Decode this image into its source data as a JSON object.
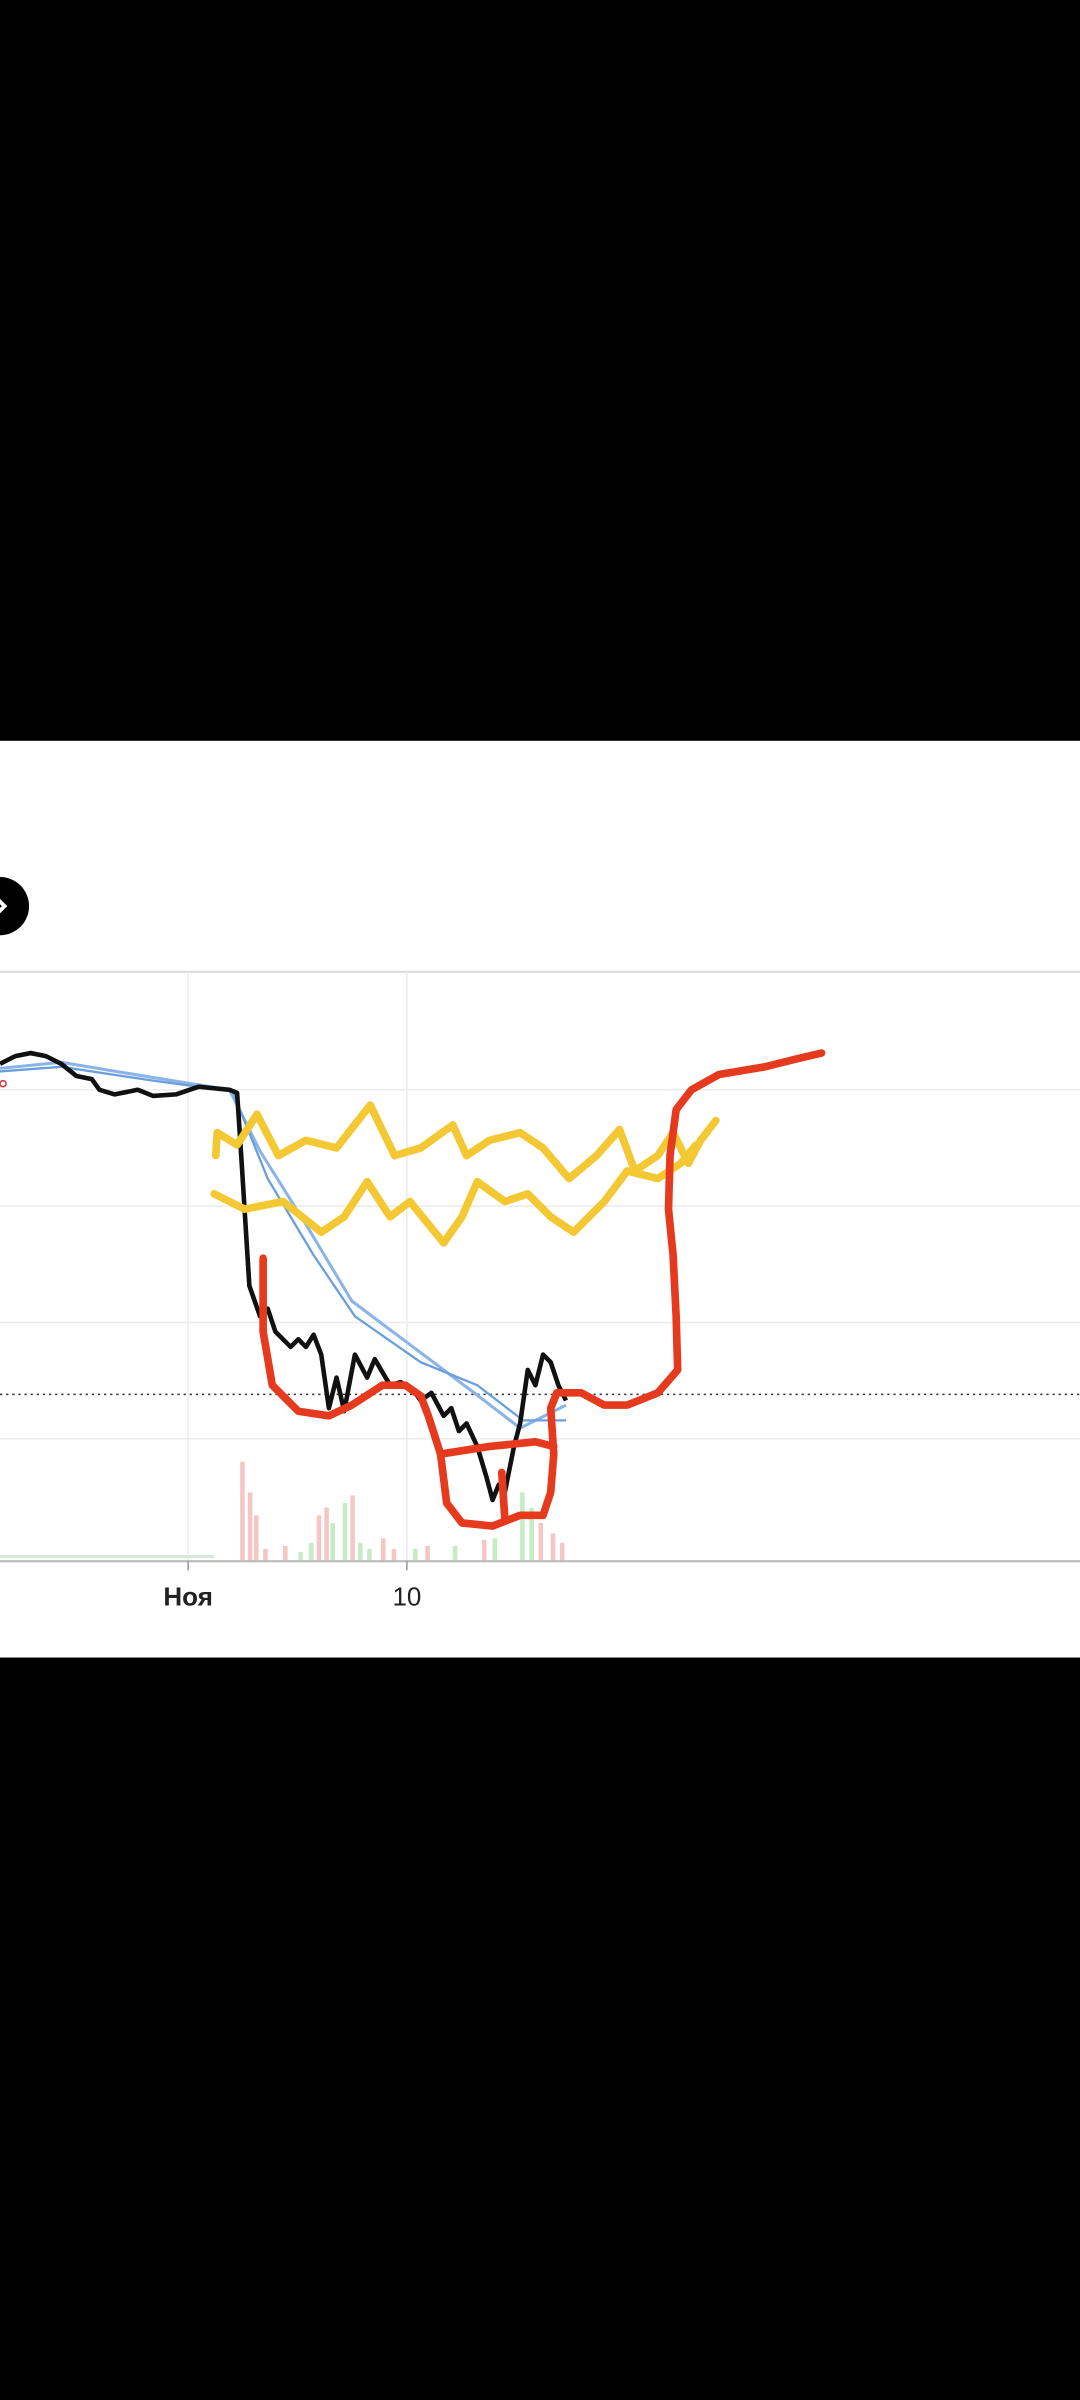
{
  "x_axis": {
    "labels": [
      "Ноя",
      "10"
    ]
  }
}
